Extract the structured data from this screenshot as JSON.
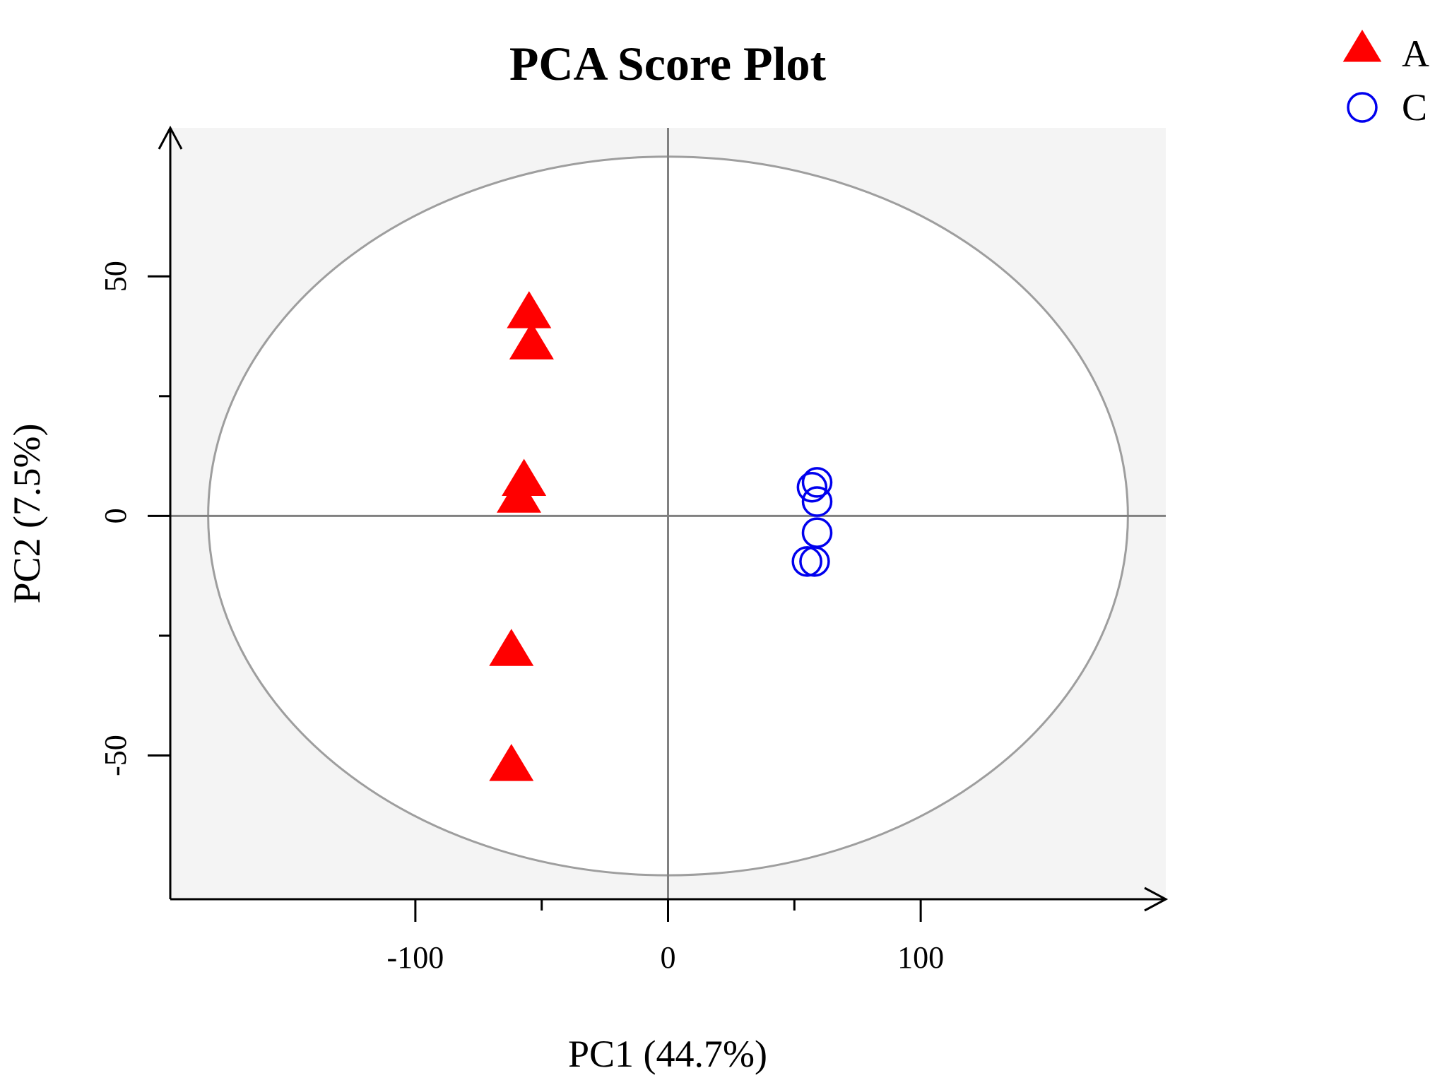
{
  "chart_data": {
    "type": "scatter",
    "title": "PCA Score Plot",
    "xlabel": "PC1 (44.7%)",
    "ylabel": "PC2 (7.5%)",
    "xlim": [
      -197,
      197
    ],
    "ylim": [
      -80,
      81
    ],
    "x_ticks": [
      -100,
      0,
      100
    ],
    "x_tick_labels": [
      "-100",
      "0",
      "100"
    ],
    "x_minor_ticks": [
      -50,
      50
    ],
    "y_ticks": [
      -50,
      0,
      50
    ],
    "y_tick_labels": [
      "-50",
      "0",
      "50"
    ],
    "y_minor_ticks": [
      -25,
      25
    ],
    "grid": false,
    "reference_lines": {
      "x": 0,
      "y": 0
    },
    "confidence_ellipse": {
      "center": [
        0,
        0
      ],
      "semi_axis_x": 182,
      "semi_axis_y": 75
    },
    "legend_position": "top-right",
    "series": [
      {
        "name": "A",
        "marker": "filled-triangle",
        "color": "#ff0000",
        "points": [
          {
            "x": -55,
            "y": 42.5
          },
          {
            "x": -54,
            "y": 36
          },
          {
            "x": -57,
            "y": 7.5
          },
          {
            "x": -59,
            "y": 4
          },
          {
            "x": -62,
            "y": -28
          },
          {
            "x": -62,
            "y": -52
          }
        ]
      },
      {
        "name": "C",
        "marker": "open-circle",
        "color": "#0000ee",
        "points": [
          {
            "x": 59,
            "y": 7
          },
          {
            "x": 57,
            "y": 6
          },
          {
            "x": 59,
            "y": 3
          },
          {
            "x": 59,
            "y": -3.5
          },
          {
            "x": 55,
            "y": -9.5
          },
          {
            "x": 58,
            "y": -9.5
          }
        ]
      }
    ]
  }
}
